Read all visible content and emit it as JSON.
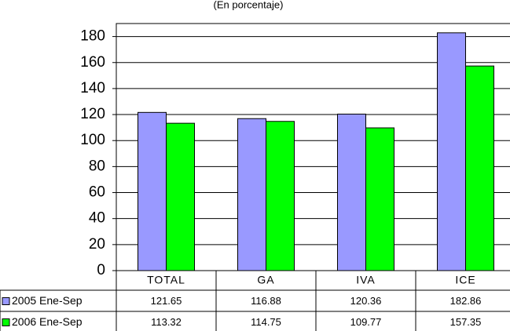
{
  "chart_data": {
    "type": "bar",
    "title": "(En porcentaje)",
    "categories": [
      "TOTAL",
      "GA",
      "IVA",
      "ICE"
    ],
    "series": [
      {
        "name": "2005 Ene-Sep",
        "color": "#9999ff",
        "values": [
          121.65,
          116.88,
          120.36,
          182.86
        ]
      },
      {
        "name": "2006 Ene-Sep",
        "color": "#00ff00",
        "values": [
          113.32,
          114.75,
          109.77,
          157.35
        ]
      }
    ],
    "ylim": [
      0,
      190
    ],
    "yticks": [
      0,
      20,
      40,
      60,
      80,
      100,
      120,
      140,
      160,
      180
    ],
    "grid": true
  }
}
